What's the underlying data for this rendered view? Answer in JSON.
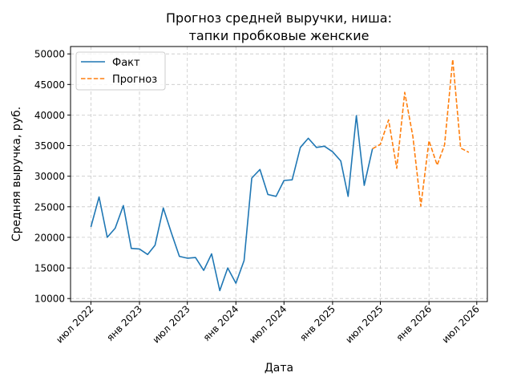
{
  "chart_data": {
    "type": "line",
    "title_line1": "Прогноз средней выручки, ниша:",
    "title_line2": "тапки пробковые женские",
    "xlabel": "Дата",
    "ylabel": "Средняя выручка, руб.",
    "ylim": [
      9500,
      51200
    ],
    "xlim": [
      "2022-04-15",
      "2026-08-10"
    ],
    "grid": true,
    "legend_position": "top-left",
    "y_ticks": [
      10000,
      15000,
      20000,
      25000,
      30000,
      35000,
      40000,
      45000,
      50000
    ],
    "x_ticks": [
      {
        "date": "2022-07-01",
        "label": "июл 2022"
      },
      {
        "date": "2023-01-01",
        "label": "янв 2023"
      },
      {
        "date": "2023-07-01",
        "label": "июл 2023"
      },
      {
        "date": "2024-01-01",
        "label": "янв 2024"
      },
      {
        "date": "2024-07-01",
        "label": "июл 2024"
      },
      {
        "date": "2025-01-01",
        "label": "янв 2025"
      },
      {
        "date": "2025-07-01",
        "label": "июл 2025"
      },
      {
        "date": "2026-01-01",
        "label": "янв 2026"
      },
      {
        "date": "2026-07-01",
        "label": "июл 2026"
      }
    ],
    "series": [
      {
        "name": "Факт",
        "color": "#1f77b4",
        "style": "solid",
        "x": [
          "2022-07-01",
          "2022-08-01",
          "2022-09-01",
          "2022-10-01",
          "2022-11-01",
          "2022-12-01",
          "2023-01-01",
          "2023-02-01",
          "2023-03-01",
          "2023-04-01",
          "2023-05-01",
          "2023-06-01",
          "2023-07-01",
          "2023-08-01",
          "2023-09-01",
          "2023-10-01",
          "2023-11-01",
          "2023-12-01",
          "2024-01-01",
          "2024-02-01",
          "2024-03-01",
          "2024-04-01",
          "2024-05-01",
          "2024-06-01",
          "2024-07-01",
          "2024-08-01",
          "2024-09-01",
          "2024-10-01",
          "2024-11-01",
          "2024-12-01",
          "2025-01-01",
          "2025-02-01",
          "2025-03-01",
          "2025-04-01",
          "2025-05-01",
          "2025-06-01"
        ],
        "values": [
          21700,
          26600,
          20000,
          21500,
          25200,
          18200,
          18100,
          17200,
          18700,
          24800,
          20800,
          16900,
          16600,
          16700,
          14600,
          17300,
          11300,
          15000,
          12500,
          16200,
          29700,
          31100,
          27000,
          26700,
          29300,
          29400,
          34700,
          36200,
          34700,
          34900,
          34000,
          32500,
          26700,
          39900,
          28500,
          34500
        ]
      },
      {
        "name": "Прогноз",
        "color": "#ff7f0e",
        "style": "dashed",
        "x": [
          "2025-06-01",
          "2025-07-01",
          "2025-08-01",
          "2025-09-01",
          "2025-10-01",
          "2025-11-01",
          "2025-12-01",
          "2026-01-01",
          "2026-02-01",
          "2026-03-01",
          "2026-04-01",
          "2026-05-01",
          "2026-06-01"
        ],
        "values": [
          34500,
          35200,
          39200,
          31300,
          43700,
          36500,
          25100,
          35800,
          31800,
          35100,
          49100,
          34600,
          33900
        ]
      }
    ]
  }
}
